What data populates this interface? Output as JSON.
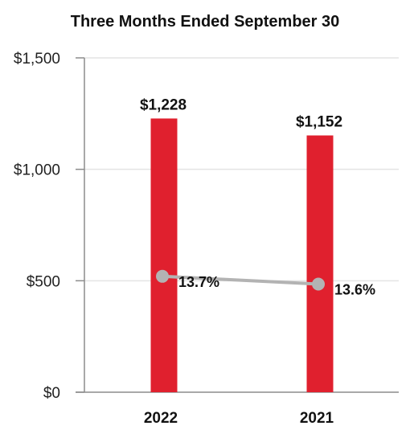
{
  "chart_data": {
    "type": "bar",
    "title": "Three Months Ended September 30",
    "categories": [
      "2022",
      "2021"
    ],
    "values": [
      1228,
      1152
    ],
    "value_labels": [
      "$1,228",
      "$1,152"
    ],
    "bar_color": "#e0202e",
    "ylim": [
      0,
      1500
    ],
    "yticks": [
      0,
      500,
      1000,
      1500
    ],
    "ytick_labels": [
      "$0",
      "$500",
      "$1,000",
      "$1,500"
    ],
    "grid": true,
    "line_series": {
      "values_pct": [
        13.7,
        13.6
      ],
      "labels": [
        "13.7%",
        "13.6%"
      ],
      "plotted_at": [
        520,
        485
      ],
      "color": "#b3b3b3"
    }
  }
}
